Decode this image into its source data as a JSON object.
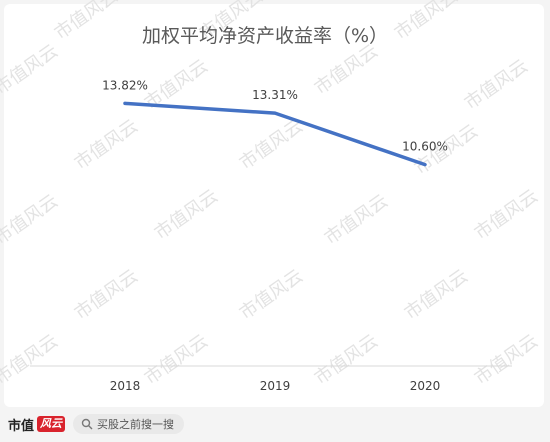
{
  "chart_data": {
    "type": "line",
    "title": "加权平均净资产收益率（%）",
    "categories": [
      "2018",
      "2019",
      "2020"
    ],
    "series": [
      {
        "values": [
          13.82,
          13.31,
          10.6
        ],
        "labels": [
          "13.82%",
          "13.31%",
          "10.60%"
        ]
      }
    ],
    "xlabel": "",
    "ylabel": "",
    "ylim": [
      0,
      15
    ],
    "grid": false,
    "legend": "none",
    "line_color": "#4472c4"
  },
  "watermark": "市值风云",
  "footer": {
    "brand": "市值",
    "brand_stamp": "风云",
    "search_text": "买股之前搜一搜"
  },
  "colors": {
    "line": "#4472c4",
    "axis": "#d9d9d9",
    "text": "#404040",
    "title": "#595959",
    "watermark": "#e3e3e3",
    "brand_red": "#d9232d"
  }
}
